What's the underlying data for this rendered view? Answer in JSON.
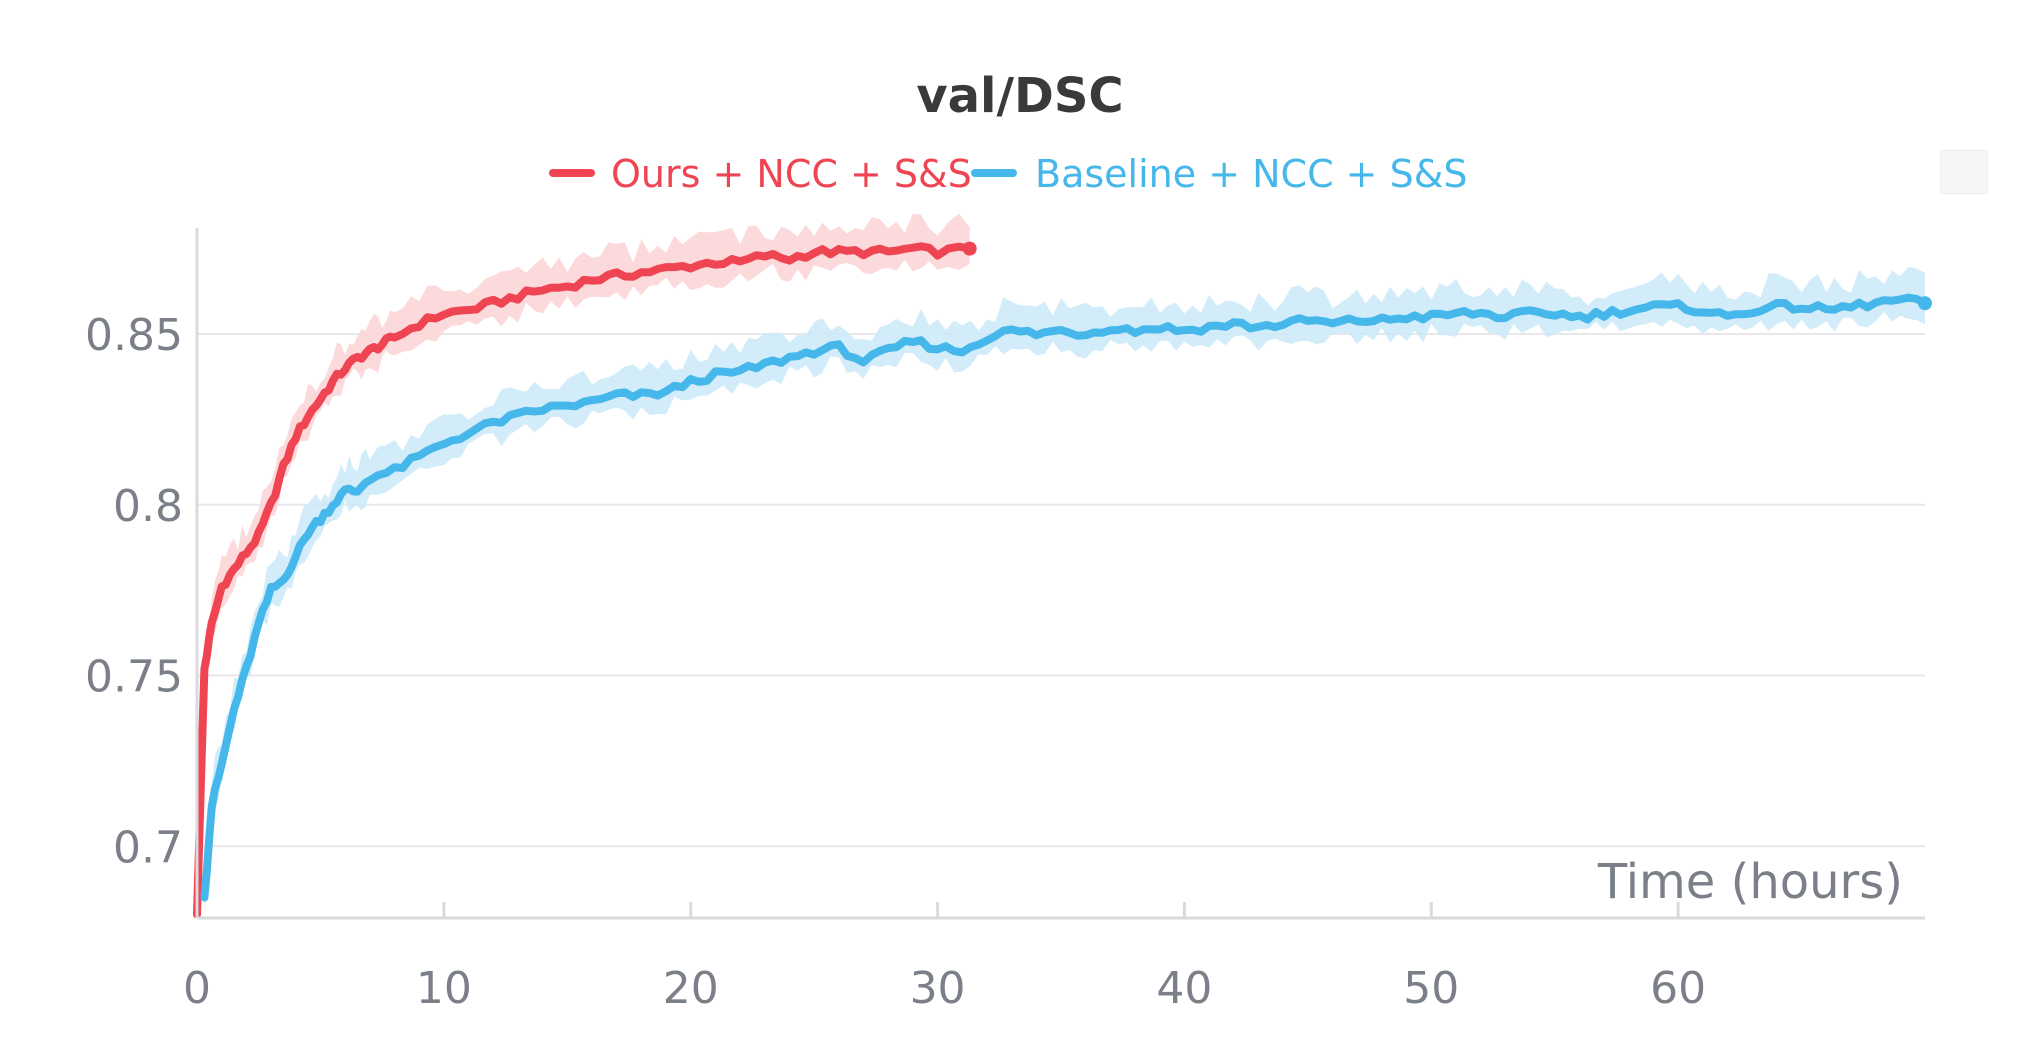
{
  "chart_data": {
    "type": "line",
    "title": "val/DSC",
    "xlabel": "Time (hours)",
    "ylabel": "",
    "xlim": [
      0,
      70
    ],
    "ylim": [
      0.68,
      0.88
    ],
    "x_ticks": [
      0,
      10,
      20,
      30,
      40,
      50,
      60
    ],
    "x_tick_labels": [
      "0",
      "10",
      "20",
      "30",
      "40",
      "50",
      "60"
    ],
    "y_ticks": [
      0.7,
      0.75,
      0.8,
      0.85
    ],
    "y_tick_labels": [
      "0.7",
      "0.75",
      "0.8",
      "0.85"
    ],
    "grid": "horizontal",
    "legend_position": "top-center",
    "series": [
      {
        "name": "Ours + NCC + S&S",
        "color": "#ef4452",
        "band_color": "#fbd3d6",
        "x": [
          0,
          0.3,
          0.6,
          1,
          1.5,
          2,
          2.5,
          3,
          3.5,
          4,
          4.5,
          5,
          5.5,
          6,
          6.5,
          7,
          7.5,
          8,
          9,
          10,
          11,
          12,
          13,
          14,
          15,
          16,
          17,
          18,
          19,
          20,
          21,
          22,
          23,
          24,
          25,
          26,
          27,
          28,
          29,
          30,
          31.3
        ],
        "y": [
          0.68,
          0.752,
          0.765,
          0.776,
          0.781,
          0.786,
          0.791,
          0.8,
          0.811,
          0.82,
          0.826,
          0.831,
          0.836,
          0.84,
          0.843,
          0.845,
          0.847,
          0.849,
          0.853,
          0.856,
          0.857,
          0.859,
          0.861,
          0.863,
          0.864,
          0.866,
          0.867,
          0.868,
          0.869,
          0.87,
          0.871,
          0.871,
          0.873,
          0.872,
          0.874,
          0.874,
          0.874,
          0.874,
          0.875,
          0.874,
          0.875
        ]
      },
      {
        "name": "Baseline + NCC + S&S",
        "color": "#45b7ea",
        "band_color": "#cbe9f8",
        "x": [
          0.3,
          0.6,
          1,
          1.5,
          2,
          2.5,
          3,
          3.5,
          4,
          4.5,
          5,
          5.5,
          6,
          6.5,
          7,
          8,
          9,
          10,
          11,
          12,
          13,
          14,
          15,
          16,
          17,
          18,
          19,
          20,
          21,
          22,
          23,
          24,
          25,
          26,
          27,
          28,
          29,
          30,
          31,
          32,
          33,
          34,
          35,
          36,
          37,
          38,
          39,
          40,
          41,
          42,
          43,
          44,
          45,
          46,
          47,
          48,
          49,
          50,
          51,
          52,
          53,
          54,
          55,
          56,
          57,
          58,
          59,
          60,
          61,
          62,
          63,
          64,
          65,
          66,
          67,
          68,
          69,
          70
        ],
        "y": [
          0.685,
          0.712,
          0.724,
          0.74,
          0.752,
          0.765,
          0.775,
          0.778,
          0.785,
          0.792,
          0.796,
          0.8,
          0.804,
          0.804,
          0.808,
          0.81,
          0.814,
          0.818,
          0.821,
          0.824,
          0.826,
          0.828,
          0.829,
          0.83,
          0.832,
          0.832,
          0.833,
          0.836,
          0.838,
          0.839,
          0.841,
          0.843,
          0.845,
          0.846,
          0.842,
          0.845,
          0.848,
          0.846,
          0.845,
          0.849,
          0.851,
          0.85,
          0.851,
          0.85,
          0.852,
          0.851,
          0.852,
          0.851,
          0.852,
          0.853,
          0.852,
          0.853,
          0.854,
          0.853,
          0.854,
          0.854,
          0.855,
          0.855,
          0.856,
          0.856,
          0.855,
          0.856,
          0.856,
          0.855,
          0.856,
          0.857,
          0.858,
          0.858,
          0.857,
          0.855,
          0.857,
          0.858,
          0.858,
          0.857,
          0.858,
          0.859,
          0.86,
          0.859
        ]
      }
    ]
  },
  "colors": {
    "title": "#3a3a3a",
    "tick_label": "#7a7f88",
    "grid": "#e8e8ea",
    "axis": "#d9dadd"
  },
  "ui": {
    "corner_button_icon": "panel-control-icon"
  }
}
